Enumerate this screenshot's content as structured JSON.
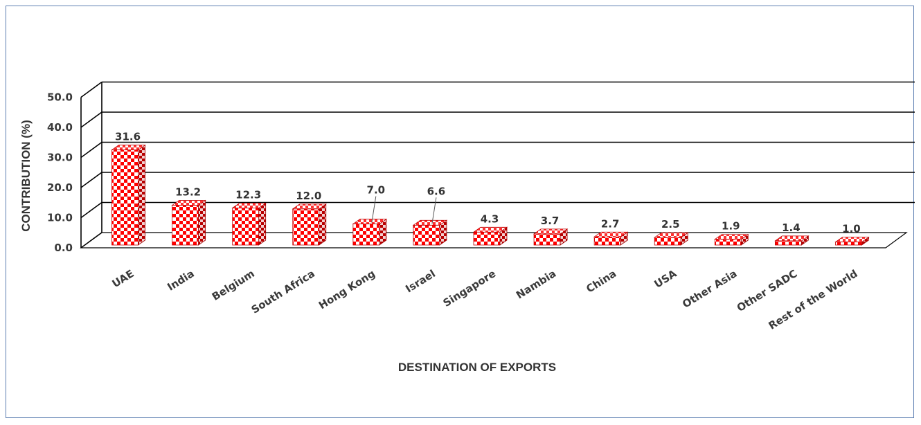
{
  "chart_data": {
    "type": "bar",
    "title": "",
    "xlabel": "DESTINATION OF EXPORTS",
    "ylabel": "CONTRIBUTION (%)",
    "ylim": [
      0,
      50
    ],
    "yticks": [
      "0.0",
      "10.0",
      "20.0",
      "30.0",
      "40.0",
      "50.0"
    ],
    "grid": true,
    "legend": "none",
    "categories": [
      "UAE",
      "India",
      "Belgium",
      "South Africa",
      "Hong Kong",
      "Israel",
      "Singapore",
      "Nambia",
      "China",
      "USA",
      "Other Asia",
      "Other SADC",
      "Rest of the World"
    ],
    "values": [
      31.6,
      13.2,
      12.3,
      12.0,
      7.0,
      6.6,
      4.3,
      3.7,
      2.7,
      2.5,
      1.9,
      1.4,
      1.0
    ],
    "value_labels": [
      "31.6",
      "13.2",
      "12.3",
      "12.0",
      "7.0",
      "6.6",
      "4.3",
      "3.7",
      "2.7",
      "2.5",
      "1.9",
      "1.4",
      "1.0"
    ],
    "colors": {
      "bar_pattern": "#ff0000",
      "bar_base": "#ffffff",
      "gridline": "#000000"
    }
  }
}
